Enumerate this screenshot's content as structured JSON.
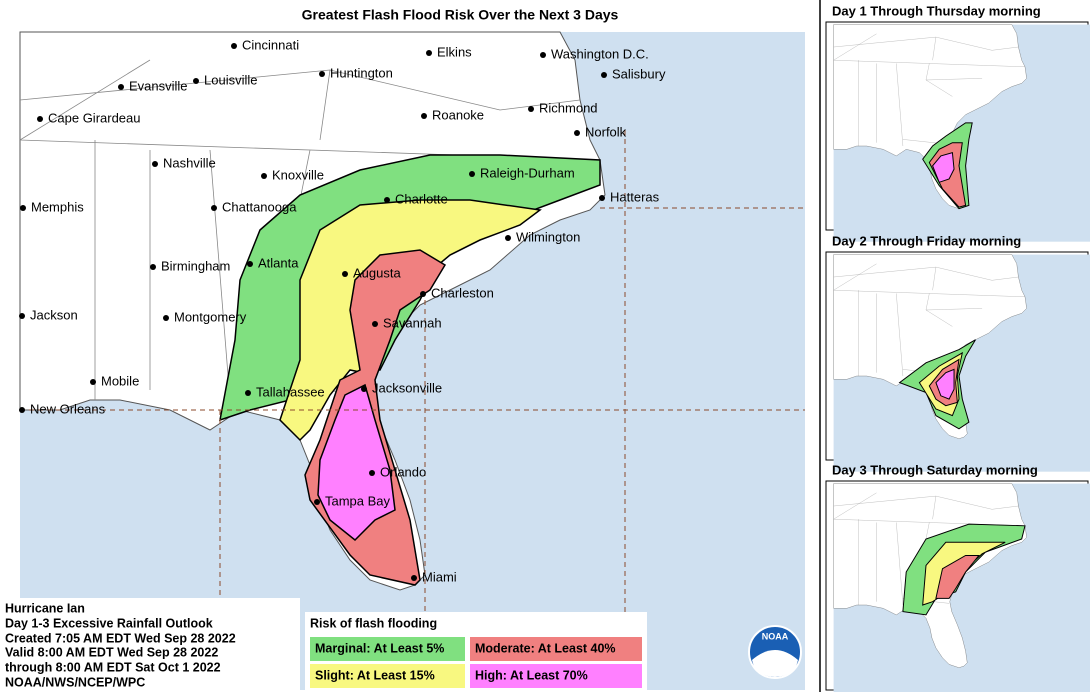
{
  "title": "Greatest Flash Flood Risk Over the Next 3 Days",
  "cities": [
    "Cincinnati",
    "Elkins",
    "Washington D.C.",
    "Salisbury",
    "Evansville",
    "Louisville",
    "Huntington",
    "Cape Girardeau",
    "Roanoke",
    "Richmond",
    "Norfolk",
    "Nashville",
    "Knoxville",
    "Raleigh-Durham",
    "Memphis",
    "Chattanooga",
    "Charlotte",
    "Hatteras",
    "Wilmington",
    "Birmingham",
    "Atlanta",
    "Augusta",
    "Charleston",
    "Jackson",
    "Montgomery",
    "Savannah",
    "Mobile",
    "Tallahassee",
    "Jacksonville",
    "New Orleans",
    "Orlando",
    "Tampa Bay",
    "Miami"
  ],
  "legend": {
    "title": "Risk of flash flooding",
    "items": [
      {
        "label": "Marginal: At Least 5%",
        "color": "#80e080"
      },
      {
        "label": "Moderate: At Least 40%",
        "color": "#f08080"
      },
      {
        "label": "Slight: At Least 15%",
        "color": "#f8f880"
      },
      {
        "label": "High: At Least 70%",
        "color": "#ff80ff"
      }
    ]
  },
  "info": [
    "Hurricane Ian",
    "Day 1-3 Excessive Rainfall Outlook",
    "Created 7:05 AM EDT Wed Sep 28 2022",
    "Valid 8:00 AM EDT Wed Sep 28 2022",
    "through 8:00 AM EDT Sat Oct 1 2022",
    "NOAA/NWS/NCEP/WPC"
  ],
  "insets": [
    "Day 1 Through Thursday morning",
    "Day 2 Through Friday morning",
    "Day 3 Through Saturday morning"
  ],
  "logo": "NOAA"
}
